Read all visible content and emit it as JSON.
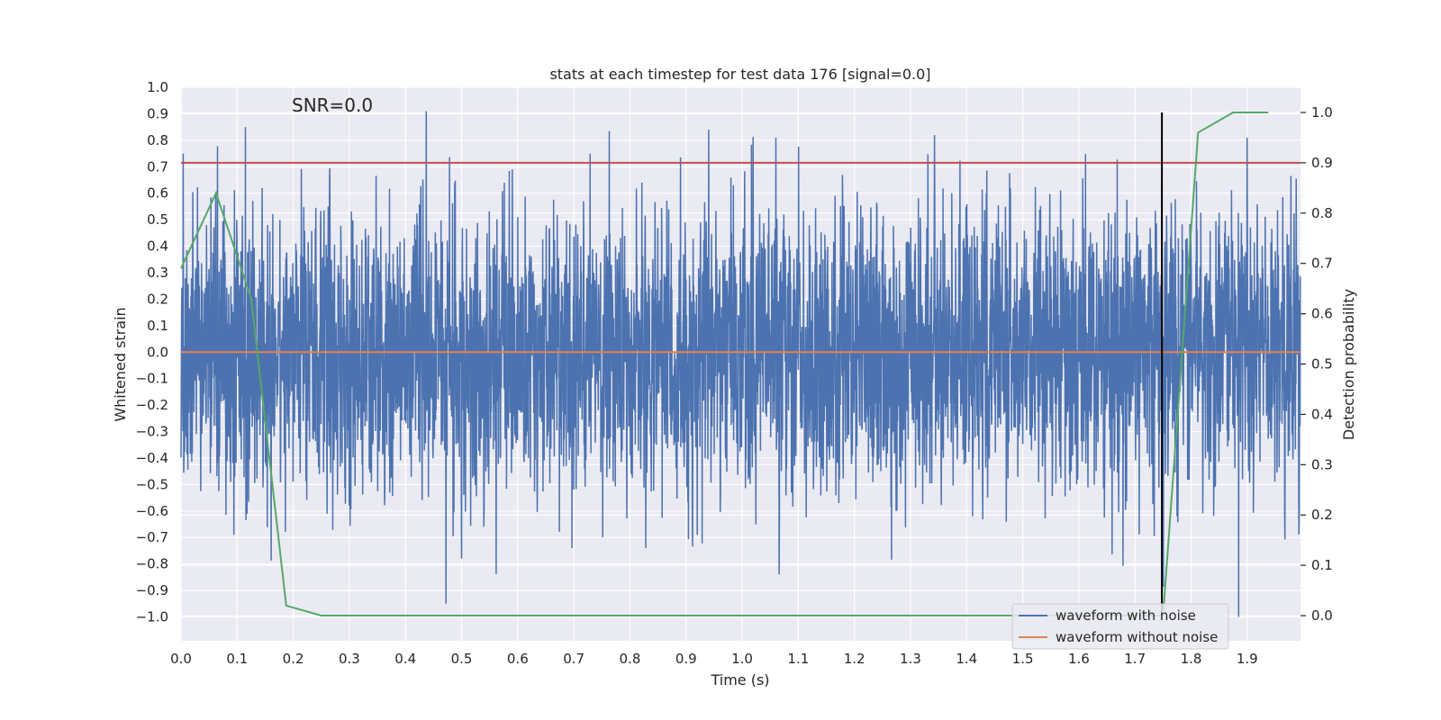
{
  "chart_data": {
    "type": "line",
    "title": "stats at each timestep for test data 176 [signal=0.0]",
    "xlabel": "Time (s)",
    "ylabel": "Whitened strain",
    "y2label": "Detection probability",
    "annotation": "SNR=0.0",
    "xlim": [
      0.0,
      1.995
    ],
    "ylim": [
      -1.09,
      1.0
    ],
    "y2lim": [
      -0.05,
      1.05
    ],
    "xticks": [
      0.0,
      0.1,
      0.2,
      0.3,
      0.4,
      0.5,
      0.6,
      0.7,
      0.8,
      0.9,
      1.0,
      1.1,
      1.2,
      1.3,
      1.4,
      1.5,
      1.6,
      1.7,
      1.8,
      1.9
    ],
    "xtick_labels": [
      "0.0",
      "0.1",
      "0.2",
      "0.3",
      "0.4",
      "0.5",
      "0.6",
      "0.7",
      "0.8",
      "0.9",
      "1.0",
      "1.1",
      "1.2",
      "1.3",
      "1.4",
      "1.5",
      "1.6",
      "1.7",
      "1.8",
      "1.9"
    ],
    "yticks": [
      1.0,
      0.9,
      0.8,
      0.7,
      0.6,
      0.5,
      0.4,
      0.3,
      0.2,
      0.1,
      0.0,
      -0.1,
      -0.2,
      -0.3,
      -0.4,
      -0.5,
      -0.6,
      -0.7,
      -0.8,
      -0.9,
      -1.0
    ],
    "ytick_labels": [
      "1.0",
      "0.9",
      "0.8",
      "0.7",
      "0.6",
      "0.5",
      "0.4",
      "0.3",
      "0.2",
      "0.1",
      "0.0",
      "−0.1",
      "−0.2",
      "−0.3",
      "−0.4",
      "−0.5",
      "−0.6",
      "−0.7",
      "−0.8",
      "−0.9",
      "−1.0"
    ],
    "y2ticks": [
      0.0,
      0.1,
      0.2,
      0.3,
      0.4,
      0.5,
      0.6,
      0.7,
      0.8,
      0.9,
      1.0
    ],
    "y2tick_labels": [
      "0.0",
      "0.1",
      "0.2",
      "0.3",
      "0.4",
      "0.5",
      "0.6",
      "0.7",
      "0.8",
      "0.9",
      "1.0"
    ],
    "grid": true,
    "legend_position": "bottom-right",
    "series": [
      {
        "name": "waveform with noise",
        "axis": "left",
        "color": "#4c72b0",
        "style": "noise-trace",
        "sample_rate": 2048,
        "x_range": [
          0.0,
          1.995
        ],
        "y_envelope": [
          -1.0,
          0.91
        ],
        "notable_peaks": [
          {
            "x": 0.437,
            "y": 0.91
          },
          {
            "x": 0.472,
            "y": -0.95
          },
          {
            "x": 0.729,
            "y": 0.75
          },
          {
            "x": 1.06,
            "y": 0.81
          },
          {
            "x": 1.066,
            "y": -0.84
          },
          {
            "x": 1.343,
            "y": 0.82
          },
          {
            "x": 1.9,
            "y": 0.81
          },
          {
            "x": 1.885,
            "y": -1.0
          },
          {
            "x": 0.004,
            "y": 0.75
          },
          {
            "x": 0.094,
            "y": -0.69
          },
          {
            "x": 0.5,
            "y": -0.78
          },
          {
            "x": 0.92,
            "y": -0.69
          }
        ]
      },
      {
        "name": "waveform without noise",
        "axis": "left",
        "color": "#dd8452",
        "x": [
          0.0,
          1.995
        ],
        "y": [
          0.0,
          0.0
        ]
      },
      {
        "name": "",
        "axis": "right",
        "color": "#55a868",
        "x": [
          0.0,
          0.0625,
          0.125,
          0.1875,
          0.25,
          0.3125,
          0.375,
          0.4375,
          0.5,
          0.5625,
          0.625,
          0.6875,
          0.75,
          0.8125,
          0.875,
          0.9375,
          1.0,
          1.0625,
          1.125,
          1.1875,
          1.25,
          1.3125,
          1.375,
          1.4375,
          1.5,
          1.5625,
          1.625,
          1.6875,
          1.75,
          1.8125,
          1.875,
          1.9375
        ],
        "y": [
          0.69,
          0.84,
          0.63,
          0.02,
          0.0,
          0.0,
          0.0,
          0.0,
          0.0,
          0.0,
          0.0,
          0.0,
          0.0,
          0.0,
          0.0,
          0.0,
          0.0,
          0.0,
          0.0,
          0.0,
          0.0,
          0.0,
          0.0,
          0.0,
          0.0,
          0.0,
          0.0,
          0.0,
          0.0,
          0.96,
          1.0,
          1.0
        ]
      }
    ],
    "hlines": [
      {
        "axis": "right",
        "y": 0.9,
        "color": "#c44e52"
      }
    ],
    "vlines": [
      {
        "x": 1.748,
        "y2_range": [
          0.0,
          1.0
        ],
        "color": "#000000"
      }
    ]
  }
}
